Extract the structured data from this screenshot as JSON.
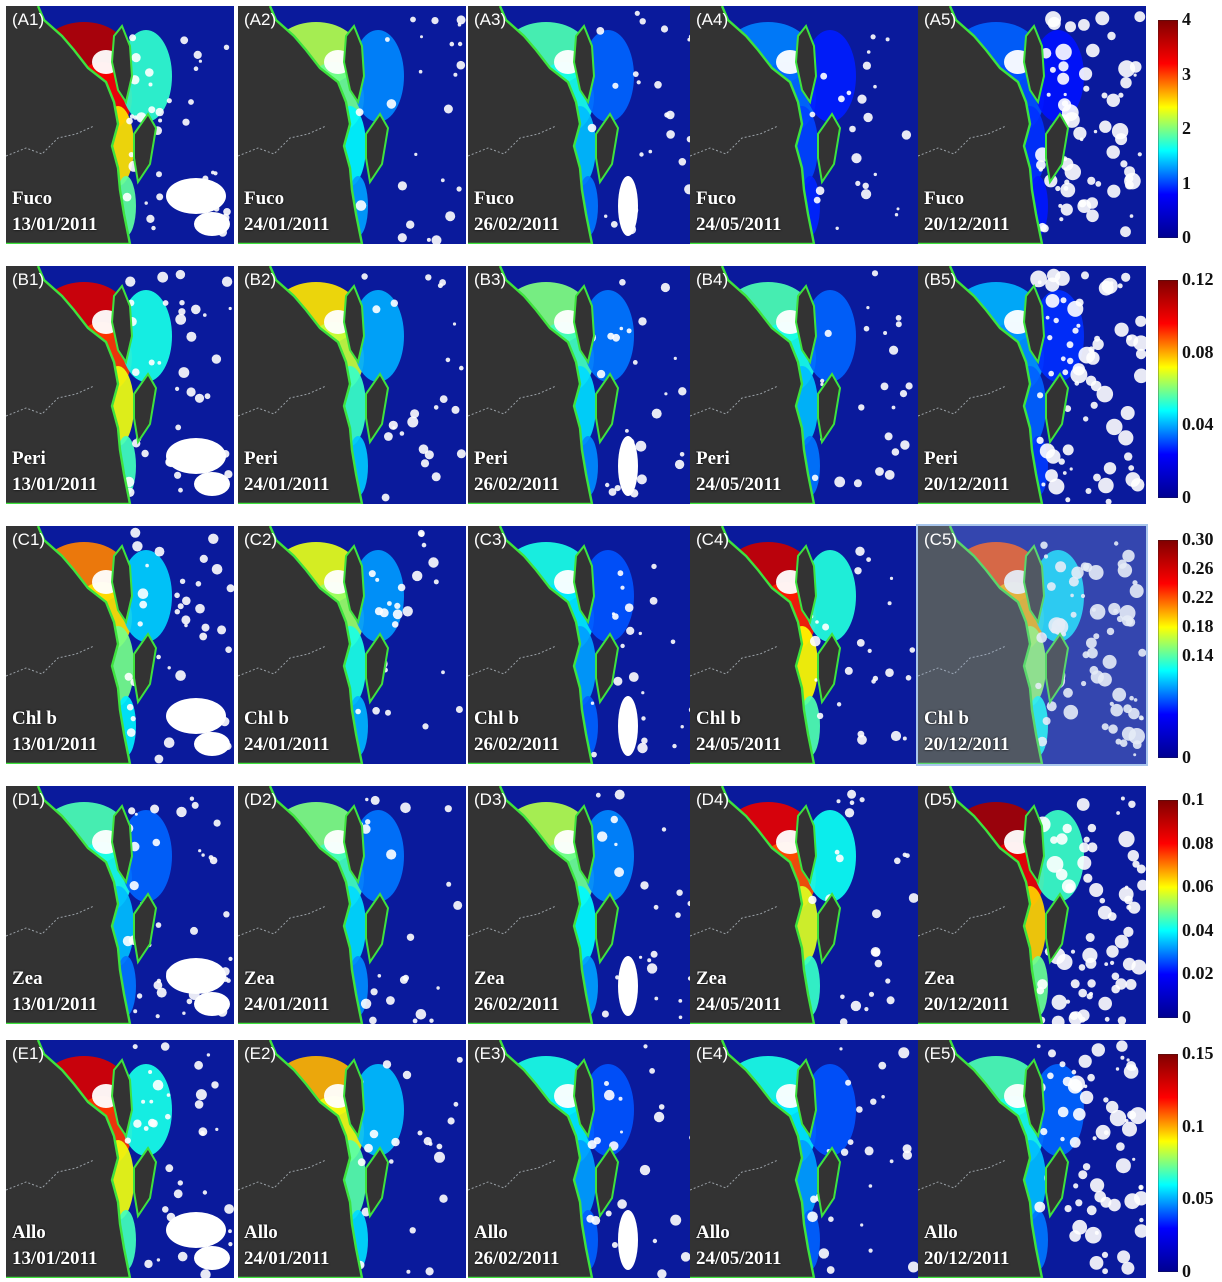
{
  "colormap": [
    "#00008f",
    "#0000ff",
    "#00ffff",
    "#ffff00",
    "#ff0000",
    "#800000"
  ],
  "colors": {
    "ocean": "#0a1a9c",
    "land": "#333333",
    "coastline": "#3ee23e",
    "cloud": "#ffffff",
    "highlight_border": "#a9c6ec"
  },
  "rows": [
    {
      "pigment": "Fuco",
      "colorbar_ticks": [
        "4",
        "3",
        "2",
        "1",
        "0"
      ],
      "colorbar_levels": [
        4,
        3,
        2,
        1,
        0
      ],
      "colorbar_range": [
        0,
        4
      ],
      "panels": [
        {
          "id": "(A1)",
          "date": "13/01/2011",
          "intensity": 0.92
        },
        {
          "id": "(A2)",
          "date": "24/01/2011",
          "intensity": 0.45
        },
        {
          "id": "(A3)",
          "date": "26/02/2011",
          "intensity": 0.35
        },
        {
          "id": "(A4)",
          "date": "24/05/2011",
          "intensity": 0.15
        },
        {
          "id": "(A5)",
          "date": "20/12/2011",
          "intensity": 0.12
        }
      ]
    },
    {
      "pigment": "Peri",
      "colorbar_ticks": [
        "0.12",
        "0.08",
        "0.04",
        "0"
      ],
      "colorbar_levels": [
        0.12,
        0.08,
        0.04,
        0
      ],
      "colorbar_range": [
        0,
        0.12
      ],
      "panels": [
        {
          "id": "(B1)",
          "date": "13/01/2011",
          "intensity": 0.85
        },
        {
          "id": "(B2)",
          "date": "24/01/2011",
          "intensity": 0.55
        },
        {
          "id": "(B3)",
          "date": "26/02/2011",
          "intensity": 0.4
        },
        {
          "id": "(B4)",
          "date": "24/05/2011",
          "intensity": 0.35
        },
        {
          "id": "(B5)",
          "date": "20/12/2011",
          "intensity": 0.2
        }
      ]
    },
    {
      "pigment": "Chl b",
      "colorbar_ticks": [
        "0.30",
        "0.26",
        "0.22",
        "0.18",
        "0.14",
        "0"
      ],
      "colorbar_levels": [
        0.3,
        0.26,
        0.22,
        0.18,
        0.14,
        0
      ],
      "colorbar_range": [
        0,
        0.3
      ],
      "panels": [
        {
          "id": "(C1)",
          "date": "13/01/2011",
          "intensity": 0.65
        },
        {
          "id": "(C2)",
          "date": "24/01/2011",
          "intensity": 0.5
        },
        {
          "id": "(C3)",
          "date": "26/02/2011",
          "intensity": 0.3
        },
        {
          "id": "(C4)",
          "date": "24/05/2011",
          "intensity": 0.88
        },
        {
          "id": "(C5)",
          "date": "20/12/2011",
          "intensity": 0.7,
          "highlighted": true
        }
      ]
    },
    {
      "pigment": "Zea",
      "colorbar_ticks": [
        "0.1",
        "0.08",
        "0.06",
        "0.04",
        "0.02",
        "0"
      ],
      "colorbar_levels": [
        0.1,
        0.08,
        0.06,
        0.04,
        0.02,
        0
      ],
      "colorbar_range": [
        0,
        0.1
      ],
      "panels": [
        {
          "id": "(D1)",
          "date": "13/01/2011",
          "intensity": 0.35
        },
        {
          "id": "(D2)",
          "date": "24/01/2011",
          "intensity": 0.4
        },
        {
          "id": "(D3)",
          "date": "26/02/2011",
          "intensity": 0.45
        },
        {
          "id": "(D4)",
          "date": "24/05/2011",
          "intensity": 0.82
        },
        {
          "id": "(D5)",
          "date": "20/12/2011",
          "intensity": 0.95
        }
      ]
    },
    {
      "pigment": "Allo",
      "colorbar_ticks": [
        "0.15",
        "0.1",
        "0.05",
        "0"
      ],
      "colorbar_levels": [
        0.15,
        0.1,
        0.05,
        0
      ],
      "colorbar_range": [
        0,
        0.15
      ],
      "panels": [
        {
          "id": "(E1)",
          "date": "13/01/2011",
          "intensity": 0.85
        },
        {
          "id": "(E2)",
          "date": "24/01/2011",
          "intensity": 0.6
        },
        {
          "id": "(E3)",
          "date": "26/02/2011",
          "intensity": 0.3
        },
        {
          "id": "(E4)",
          "date": "24/05/2011",
          "intensity": 0.3
        },
        {
          "id": "(E5)",
          "date": "20/12/2011",
          "intensity": 0.35
        }
      ]
    }
  ]
}
